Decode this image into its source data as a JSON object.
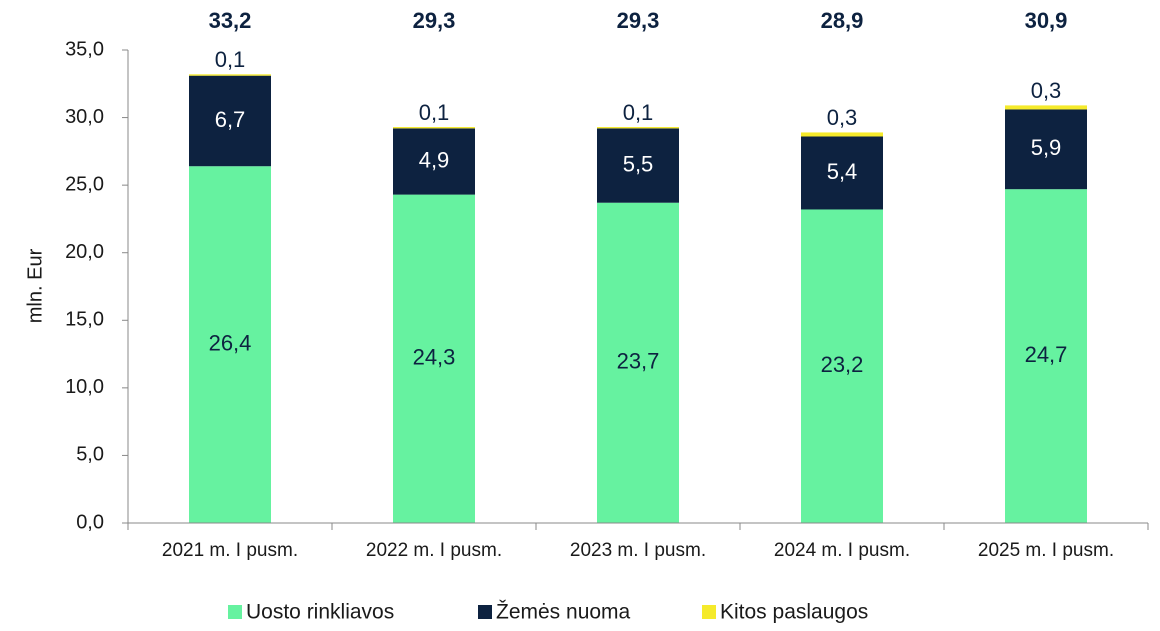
{
  "chart_data": {
    "type": "stacked_bar",
    "ylabel": "mln. Eur",
    "categories": [
      "2021 m. I pusm.",
      "2022 m. I pusm.",
      "2023 m. I pusm.",
      "2024 m. I pusm.",
      "2025 m. I pusm."
    ],
    "series": [
      {
        "name": "Uosto rinkliavos",
        "color": "#66f2a0",
        "values": [
          26.4,
          24.3,
          23.7,
          23.2,
          24.7
        ],
        "value_labels": [
          "26,4",
          "24,3",
          "23,7",
          "23,2",
          "24,7"
        ]
      },
      {
        "name": "Žemės nuoma",
        "color": "#0d2240",
        "values": [
          6.7,
          4.9,
          5.5,
          5.4,
          5.9
        ],
        "value_labels": [
          "6,7",
          "4,9",
          "5,5",
          "5,4",
          "5,9"
        ]
      },
      {
        "name": "Kitos paslaugos",
        "color": "#f5ea2b",
        "values": [
          0.1,
          0.1,
          0.1,
          0.3,
          0.3
        ],
        "value_labels": [
          "0,1",
          "0,1",
          "0,1",
          "0,3",
          "0,3"
        ]
      }
    ],
    "totals": {
      "values": [
        33.2,
        29.3,
        29.3,
        28.9,
        30.9
      ],
      "value_labels": [
        "33,2",
        "29,3",
        "29,3",
        "28,9",
        "30,9"
      ]
    },
    "ylim": [
      0,
      35
    ],
    "yticks": [
      {
        "value": 0,
        "label": "0,0"
      },
      {
        "value": 5,
        "label": "5,0"
      },
      {
        "value": 10,
        "label": "10,0"
      },
      {
        "value": 15,
        "label": "15,0"
      },
      {
        "value": 20,
        "label": "20,0"
      },
      {
        "value": 25,
        "label": "25,0"
      },
      {
        "value": 30,
        "label": "30,0"
      },
      {
        "value": 35,
        "label": "35,0"
      }
    ],
    "legend": "bottom"
  }
}
